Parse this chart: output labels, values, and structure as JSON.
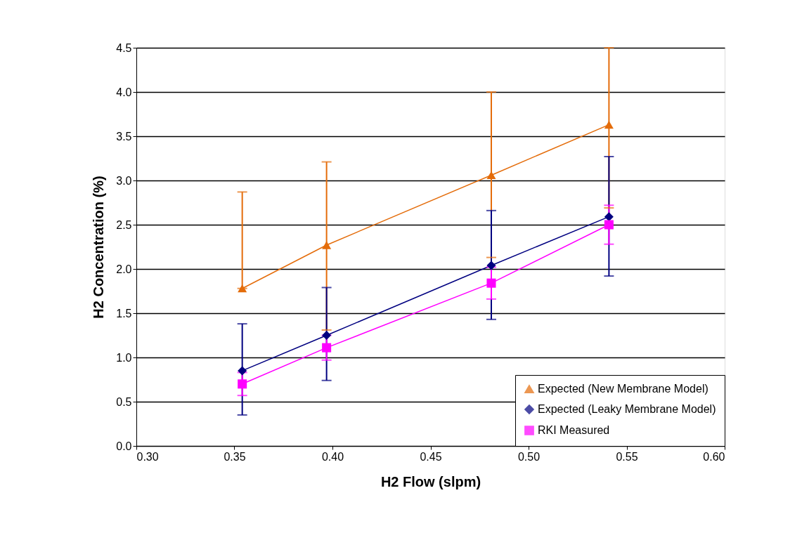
{
  "chart_data": {
    "type": "line",
    "xlabel": "H2 Flow (slpm)",
    "ylabel": "H2 Concentration (%)",
    "x": [
      0.354,
      0.397,
      0.481,
      0.541
    ],
    "series": [
      {
        "name": "Expected (New Membrane Model)",
        "color": "#e46c0a",
        "marker": "triangle",
        "values": [
          1.78,
          2.27,
          3.06,
          3.63
        ],
        "errors": [
          [
            1.78,
            2.87
          ],
          [
            1.31,
            3.21
          ],
          [
            2.13,
            4.0
          ],
          [
            2.69,
            4.5
          ]
        ]
      },
      {
        "name": "Expected (Leaky Membrane Model)",
        "color": "#000080",
        "marker": "diamond",
        "values": [
          0.85,
          1.25,
          2.04,
          2.59
        ],
        "errors": [
          [
            0.35,
            1.38
          ],
          [
            0.74,
            1.79
          ],
          [
            1.43,
            2.66
          ],
          [
            1.92,
            3.27
          ]
        ]
      },
      {
        "name": "RKI Measured",
        "color": "#ff00ff",
        "marker": "square",
        "values": [
          0.7,
          1.11,
          1.84,
          2.5
        ],
        "errors": [
          [
            0.57,
            0.83
          ],
          [
            0.97,
            1.25
          ],
          [
            1.66,
            2.02
          ],
          [
            2.28,
            2.72
          ]
        ]
      }
    ],
    "xlim": [
      0.3,
      0.6
    ],
    "xticks": [
      {
        "value": 0.3,
        "label": "0.30"
      },
      {
        "value": 0.35,
        "label": "0.35"
      },
      {
        "value": 0.4,
        "label": "0.40"
      },
      {
        "value": 0.45,
        "label": "0.45"
      },
      {
        "value": 0.5,
        "label": "0.50"
      },
      {
        "value": 0.55,
        "label": "0.55"
      },
      {
        "value": 0.6,
        "label": "0.60"
      }
    ],
    "ylim": [
      0,
      4.5
    ],
    "yticks": [
      {
        "value": 0,
        "label": "0.0"
      },
      {
        "value": 0.5,
        "label": "0.5"
      },
      {
        "value": 1,
        "label": "1.0"
      },
      {
        "value": 1.5,
        "label": "1.5"
      },
      {
        "value": 2,
        "label": "2.0"
      },
      {
        "value": 2.5,
        "label": "2.5"
      },
      {
        "value": 3,
        "label": "3.0"
      },
      {
        "value": 3.5,
        "label": "3.5"
      },
      {
        "value": 4,
        "label": "4.0"
      },
      {
        "value": 4.5,
        "label": "4.5"
      }
    ],
    "grid": "y",
    "legend": "bottom right",
    "line_style": "solid"
  }
}
